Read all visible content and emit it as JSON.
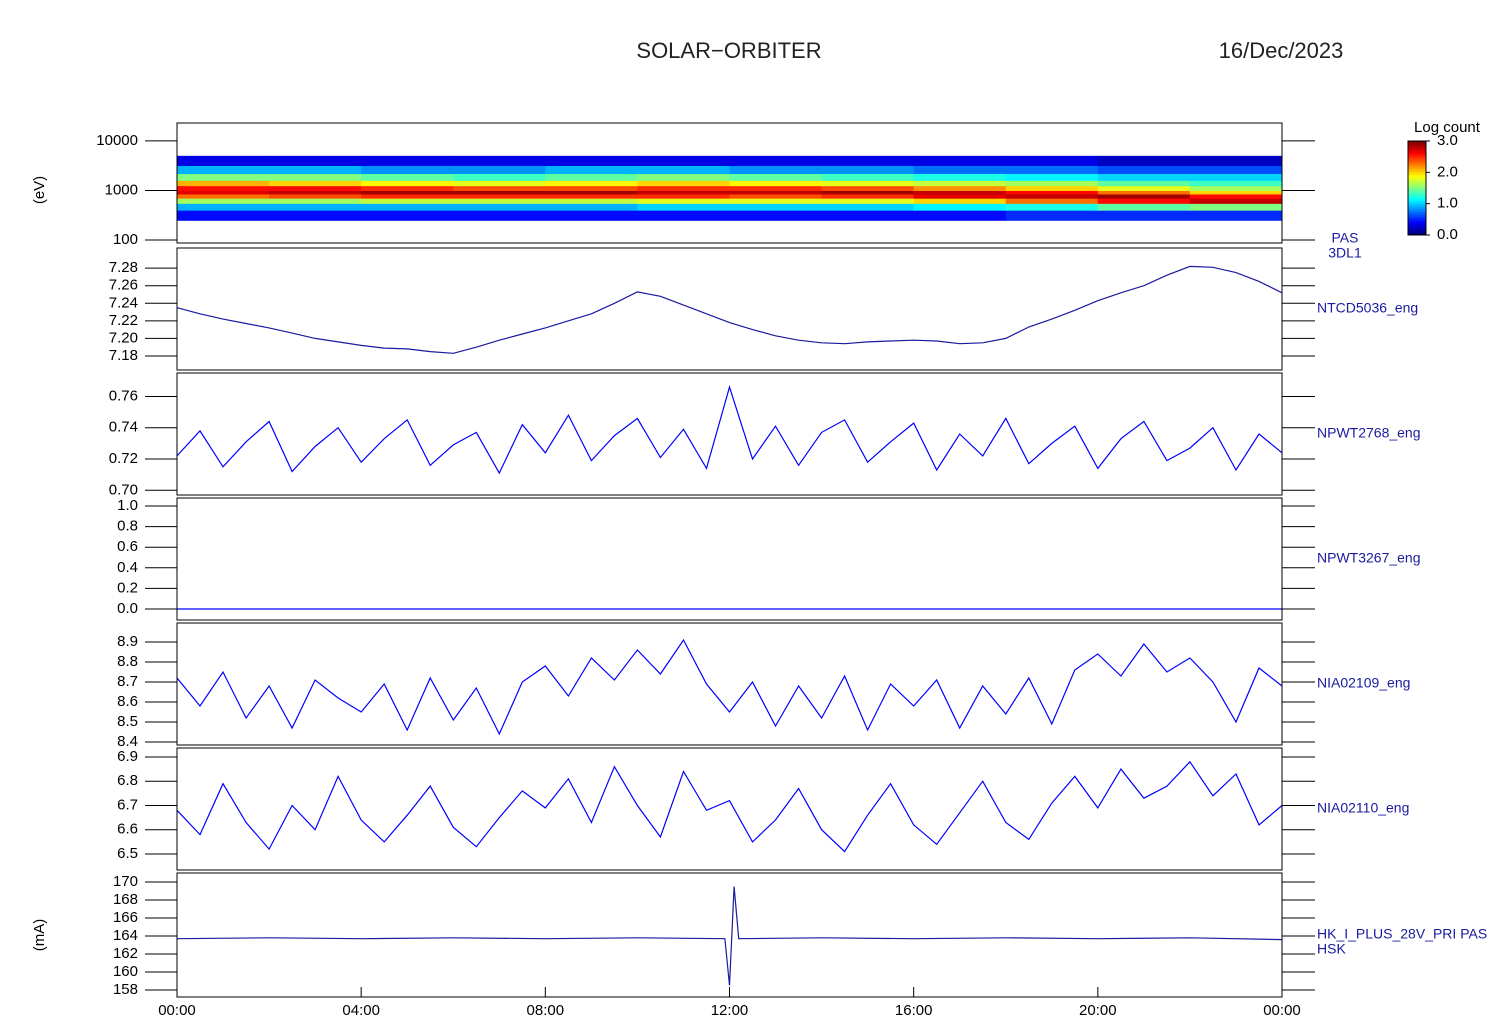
{
  "header": {
    "title": "SOLAR−ORBITER",
    "date": "16/Dec/2023"
  },
  "chart_data": [
    {
      "type": "heatmap",
      "label": [
        "PAS",
        "3DL1"
      ],
      "ylabel": "(eV)",
      "log": true,
      "xbins": [
        0,
        2,
        4,
        6,
        8,
        10,
        12,
        14,
        16,
        18,
        20,
        22,
        24
      ],
      "ybins": [
        250,
        400,
        550,
        700,
        850,
        1000,
        1250,
        1600,
        2200,
        3200,
        5000
      ],
      "z": [
        [
          0.4,
          0.4,
          0.4,
          0.4,
          0.4,
          0.4,
          0.4,
          0.4,
          0.4,
          0.5,
          0.5,
          0.5
        ],
        [
          0.9,
          0.9,
          0.9,
          0.9,
          0.9,
          1.0,
          1.0,
          1.0,
          1.1,
          1.2,
          1.4,
          1.5
        ],
        [
          1.6,
          1.6,
          1.7,
          1.7,
          1.7,
          1.8,
          1.8,
          1.8,
          2.0,
          2.3,
          2.6,
          2.8
        ],
        [
          2.3,
          2.4,
          2.5,
          2.5,
          2.5,
          2.5,
          2.4,
          2.5,
          2.7,
          2.8,
          2.9,
          2.6
        ],
        [
          2.7,
          2.8,
          2.9,
          2.9,
          2.9,
          2.8,
          2.8,
          2.9,
          2.8,
          2.6,
          2.3,
          2.0
        ],
        [
          2.6,
          2.6,
          2.5,
          2.4,
          2.4,
          2.5,
          2.5,
          2.4,
          2.2,
          2.0,
          1.8,
          1.6
        ],
        [
          2.1,
          2.0,
          1.9,
          1.8,
          1.9,
          2.0,
          1.9,
          1.8,
          1.7,
          1.6,
          1.4,
          1.3
        ],
        [
          1.5,
          1.5,
          1.4,
          1.3,
          1.4,
          1.5,
          1.4,
          1.3,
          1.2,
          1.1,
          1.0,
          1.0
        ],
        [
          0.9,
          0.9,
          0.8,
          0.8,
          0.9,
          0.9,
          0.8,
          0.8,
          0.7,
          0.7,
          0.6,
          0.6
        ],
        [
          0.3,
          0.3,
          0.3,
          0.3,
          0.3,
          0.3,
          0.3,
          0.3,
          0.3,
          0.3,
          0.2,
          0.2
        ]
      ],
      "xlim": [
        0,
        24
      ],
      "ylim": [
        87,
        23000
      ],
      "yticks": [
        100,
        1000,
        10000
      ],
      "colorbar": {
        "label": "Log count",
        "lim": [
          0,
          3
        ],
        "ticks": [
          {
            "value": 0,
            "label": "0.0"
          },
          {
            "value": 1,
            "label": "1.0"
          },
          {
            "value": 2,
            "label": "2.0"
          },
          {
            "value": 3,
            "label": "3.0"
          }
        ]
      }
    },
    {
      "type": "line",
      "label": [
        "NTCD5036_eng"
      ],
      "color": "#1a1aa0",
      "xlim": [
        0,
        24
      ],
      "ylim": [
        7.164,
        7.303
      ],
      "yticks": [
        7.18,
        {
          "value": 7.2,
          "label": "7.20"
        },
        7.22,
        7.24,
        7.26,
        7.28
      ],
      "x": [
        0,
        0.5,
        1,
        1.5,
        2,
        2.5,
        3,
        3.5,
        4,
        4.5,
        5,
        5.5,
        6,
        6.5,
        7,
        7.5,
        8,
        8.5,
        9,
        9.5,
        10,
        10.5,
        11,
        11.5,
        12,
        12.5,
        13,
        13.5,
        14,
        14.5,
        15,
        15.5,
        16,
        16.5,
        17,
        17.5,
        18,
        18.5,
        19,
        19.5,
        20,
        20.5,
        21,
        21.5,
        22,
        22.5,
        23,
        23.5,
        24
      ],
      "values": [
        7.235,
        7.228,
        7.222,
        7.217,
        7.212,
        7.206,
        7.2,
        7.196,
        7.192,
        7.189,
        7.188,
        7.185,
        7.183,
        7.19,
        7.198,
        7.205,
        7.212,
        7.22,
        7.228,
        7.24,
        7.253,
        7.248,
        7.238,
        7.228,
        7.218,
        7.21,
        7.203,
        7.198,
        7.195,
        7.194,
        7.196,
        7.197,
        7.198,
        7.197,
        7.194,
        7.195,
        7.2,
        7.213,
        7.222,
        7.232,
        7.243,
        7.252,
        7.26,
        7.272,
        7.282,
        7.281,
        7.275,
        7.265,
        7.252
      ]
    },
    {
      "type": "line",
      "label": [
        "NPWT2768_eng"
      ],
      "color": "#0000ff",
      "xlim": [
        0,
        24
      ],
      "ylim": [
        0.697,
        0.775
      ],
      "yticks": [
        {
          "value": 0.7,
          "label": "0.70"
        },
        0.72,
        0.74,
        0.76
      ],
      "x": [
        0,
        0.5,
        1,
        1.5,
        2,
        2.5,
        3,
        3.5,
        4,
        4.5,
        5,
        5.5,
        6,
        6.5,
        7,
        7.5,
        8,
        8.5,
        9,
        9.5,
        10,
        10.5,
        11,
        11.5,
        12,
        12.5,
        13,
        13.5,
        14,
        14.5,
        15,
        15.5,
        16,
        16.5,
        17,
        17.5,
        18,
        18.5,
        19,
        19.5,
        20,
        20.5,
        21,
        21.5,
        22,
        22.5,
        23,
        23.5,
        24
      ],
      "values": [
        0.722,
        0.738,
        0.715,
        0.731,
        0.744,
        0.712,
        0.728,
        0.74,
        0.718,
        0.733,
        0.745,
        0.716,
        0.729,
        0.737,
        0.711,
        0.742,
        0.724,
        0.748,
        0.719,
        0.735,
        0.746,
        0.721,
        0.739,
        0.714,
        0.766,
        0.72,
        0.741,
        0.716,
        0.737,
        0.745,
        0.718,
        0.731,
        0.743,
        0.713,
        0.736,
        0.722,
        0.746,
        0.717,
        0.73,
        0.741,
        0.714,
        0.733,
        0.744,
        0.719,
        0.727,
        0.74,
        0.713,
        0.736,
        0.724
      ]
    },
    {
      "type": "line",
      "label": [
        "NPWT3267_eng"
      ],
      "color": "#0000ff",
      "xlim": [
        0,
        24
      ],
      "ylim": [
        -0.107,
        1.078
      ],
      "yticks": [
        {
          "value": 0,
          "label": "0.0"
        },
        0.2,
        0.4,
        0.6,
        0.8,
        {
          "value": 1,
          "label": "1.0"
        }
      ],
      "x": [
        0,
        4,
        8,
        12,
        16,
        20,
        24
      ],
      "values": [
        0,
        0,
        0,
        0,
        0,
        0,
        0
      ]
    },
    {
      "type": "line",
      "label": [
        "NIA02109_eng"
      ],
      "color": "#0000ff",
      "xlim": [
        0,
        24
      ],
      "ylim": [
        8.385,
        8.995
      ],
      "yticks": [
        8.4,
        8.5,
        8.6,
        8.7,
        8.8,
        8.9
      ],
      "x": [
        0,
        0.5,
        1,
        1.5,
        2,
        2.5,
        3,
        3.5,
        4,
        4.5,
        5,
        5.5,
        6,
        6.5,
        7,
        7.5,
        8,
        8.5,
        9,
        9.5,
        10,
        10.5,
        11,
        11.5,
        12,
        12.5,
        13,
        13.5,
        14,
        14.5,
        15,
        15.5,
        16,
        16.5,
        17,
        17.5,
        18,
        18.5,
        19,
        19.5,
        20,
        20.5,
        21,
        21.5,
        22,
        22.5,
        23,
        23.5,
        24
      ],
      "values": [
        8.72,
        8.58,
        8.75,
        8.52,
        8.68,
        8.47,
        8.71,
        8.62,
        8.55,
        8.69,
        8.46,
        8.72,
        8.51,
        8.67,
        8.44,
        8.7,
        8.78,
        8.63,
        8.82,
        8.71,
        8.86,
        8.74,
        8.91,
        8.69,
        8.55,
        8.7,
        8.48,
        8.68,
        8.52,
        8.73,
        8.46,
        8.69,
        8.58,
        8.71,
        8.47,
        8.68,
        8.54,
        8.72,
        8.49,
        8.76,
        8.84,
        8.73,
        8.89,
        8.75,
        8.82,
        8.7,
        8.5,
        8.77,
        8.68
      ]
    },
    {
      "type": "line",
      "label": [
        "NIA02110_eng"
      ],
      "color": "#0000ff",
      "xlim": [
        0,
        24
      ],
      "ylim": [
        6.434,
        6.937
      ],
      "yticks": [
        6.5,
        6.6,
        6.7,
        6.8,
        6.9
      ],
      "x": [
        0,
        0.5,
        1,
        1.5,
        2,
        2.5,
        3,
        3.5,
        4,
        4.5,
        5,
        5.5,
        6,
        6.5,
        7,
        7.5,
        8,
        8.5,
        9,
        9.5,
        10,
        10.5,
        11,
        11.5,
        12,
        12.5,
        13,
        13.5,
        14,
        14.5,
        15,
        15.5,
        16,
        16.5,
        17,
        17.5,
        18,
        18.5,
        19,
        19.5,
        20,
        20.5,
        21,
        21.5,
        22,
        22.5,
        23,
        23.5,
        24
      ],
      "values": [
        6.68,
        6.58,
        6.79,
        6.63,
        6.52,
        6.7,
        6.6,
        6.82,
        6.64,
        6.55,
        6.66,
        6.78,
        6.61,
        6.53,
        6.65,
        6.76,
        6.69,
        6.81,
        6.63,
        6.86,
        6.7,
        6.57,
        6.84,
        6.68,
        6.72,
        6.55,
        6.64,
        6.77,
        6.6,
        6.51,
        6.66,
        6.79,
        6.62,
        6.54,
        6.67,
        6.8,
        6.63,
        6.56,
        6.71,
        6.82,
        6.69,
        6.85,
        6.73,
        6.78,
        6.88,
        6.74,
        6.83,
        6.62,
        6.7
      ]
    },
    {
      "type": "line",
      "label": [
        "HK_I_PLUS_28V_PRI PAS",
        "HSK"
      ],
      "ylabel": "(mA)",
      "color": "#1a1aa0",
      "xlim": [
        0,
        24
      ],
      "ylim": [
        157.22,
        171
      ],
      "yticks": [
        158,
        160,
        162,
        164,
        166,
        168,
        170
      ],
      "x": [
        0,
        2,
        4,
        6,
        8,
        10,
        11.9,
        12.0,
        12.05,
        12.1,
        12.2,
        14,
        16,
        18,
        20,
        22,
        24
      ],
      "values": [
        163.7,
        163.8,
        163.7,
        163.8,
        163.7,
        163.8,
        163.7,
        158.5,
        164,
        169.5,
        163.7,
        163.8,
        163.7,
        163.8,
        163.7,
        163.8,
        163.6
      ],
      "xticks": [
        {
          "value": 0,
          "label": "00:00"
        },
        {
          "value": 4,
          "label": "04:00"
        },
        {
          "value": 8,
          "label": "08:00"
        },
        {
          "value": 12,
          "label": "12:00"
        },
        {
          "value": 16,
          "label": "16:00"
        },
        {
          "value": 20,
          "label": "20:00"
        },
        {
          "value": 24,
          "label": "00:00"
        }
      ]
    }
  ]
}
